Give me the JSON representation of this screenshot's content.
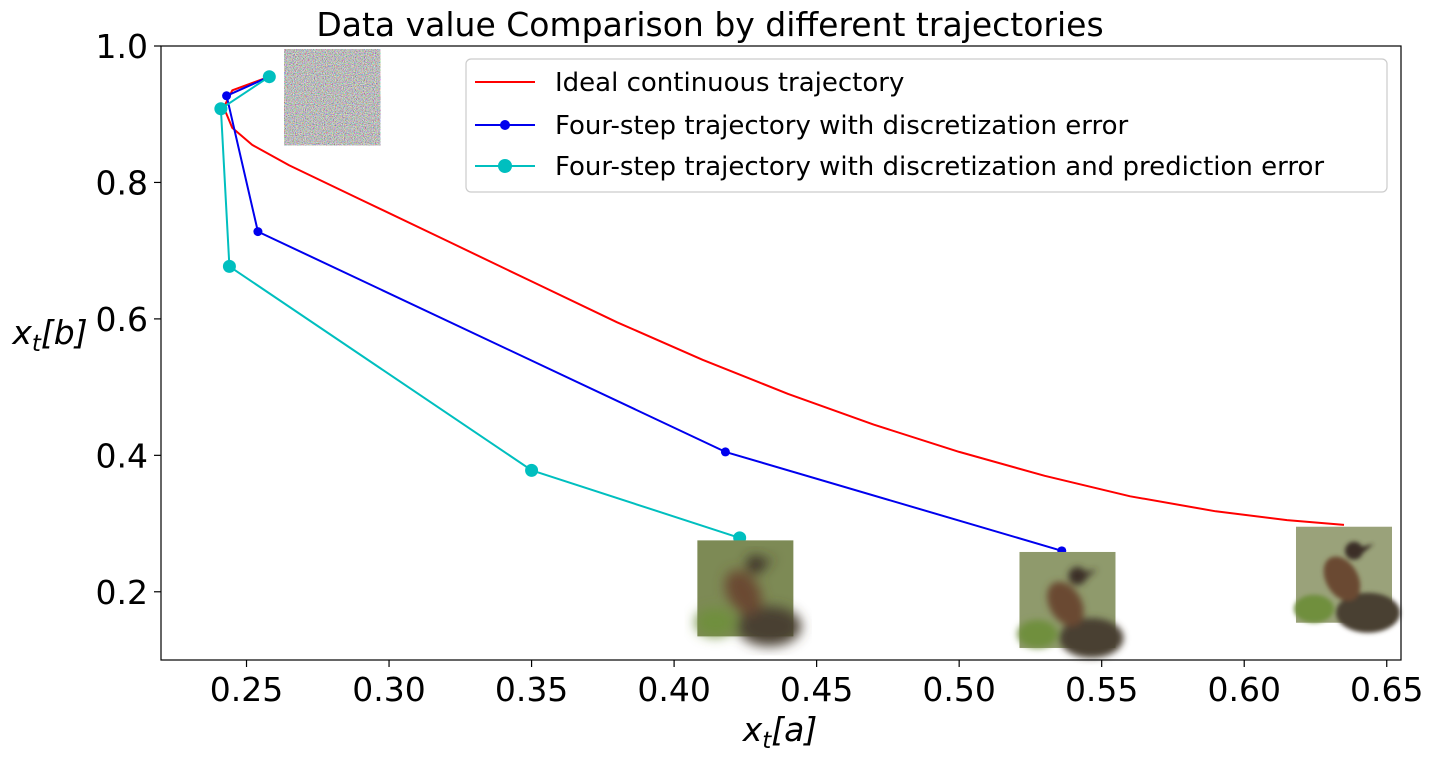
{
  "chart_data": {
    "type": "line",
    "title": "Data value Comparison by different trajectories",
    "xlabel": {
      "base": "x",
      "sub": "t",
      "arg": "[a]"
    },
    "ylabel": {
      "base": "x",
      "sub": "t",
      "arg": "[b]"
    },
    "xlim": [
      0.22,
      0.655
    ],
    "ylim": [
      0.1,
      1.0
    ],
    "xticks": [
      0.25,
      0.3,
      0.35,
      0.4,
      0.45,
      0.5,
      0.55,
      0.6,
      0.65
    ],
    "xtick_labels": [
      "0.25",
      "0.30",
      "0.35",
      "0.40",
      "0.45",
      "0.50",
      "0.55",
      "0.60",
      "0.65"
    ],
    "yticks": [
      0.2,
      0.4,
      0.6,
      0.8,
      1.0
    ],
    "ytick_labels": [
      "0.2",
      "0.4",
      "0.6",
      "0.8",
      "1.0"
    ],
    "legend_position": "top-right",
    "grid": false,
    "series": [
      {
        "name": "Ideal continuous trajectory",
        "color": "#ff0000",
        "marker": "none",
        "x": [
          0.258,
          0.245,
          0.242,
          0.245,
          0.252,
          0.265,
          0.29,
          0.32,
          0.35,
          0.38,
          0.41,
          0.44,
          0.47,
          0.5,
          0.53,
          0.56,
          0.59,
          0.615,
          0.635
        ],
        "y": [
          0.955,
          0.935,
          0.91,
          0.88,
          0.855,
          0.825,
          0.775,
          0.715,
          0.655,
          0.595,
          0.54,
          0.49,
          0.445,
          0.405,
          0.37,
          0.34,
          0.318,
          0.305,
          0.298
        ]
      },
      {
        "name": "Four-step trajectory with discretization error",
        "color": "#0000ee",
        "marker": "small-dot",
        "x": [
          0.258,
          0.243,
          0.254,
          0.418,
          0.536
        ],
        "y": [
          0.955,
          0.927,
          0.728,
          0.405,
          0.26
        ]
      },
      {
        "name": "Four-step trajectory with discretization and prediction error",
        "color": "#00bfbf",
        "marker": "large-dot",
        "x": [
          0.258,
          0.241,
          0.244,
          0.35,
          0.423
        ],
        "y": [
          0.955,
          0.908,
          0.677,
          0.378,
          0.279
        ]
      }
    ],
    "thumbnails": [
      {
        "depicts": "noise",
        "x": 0.28,
        "y": 0.925
      },
      {
        "depicts": "blurry-bird",
        "x": 0.425,
        "y": 0.205
      },
      {
        "depicts": "bird",
        "x": 0.538,
        "y": 0.188
      },
      {
        "depicts": "bird",
        "x": 0.635,
        "y": 0.225
      }
    ]
  }
}
